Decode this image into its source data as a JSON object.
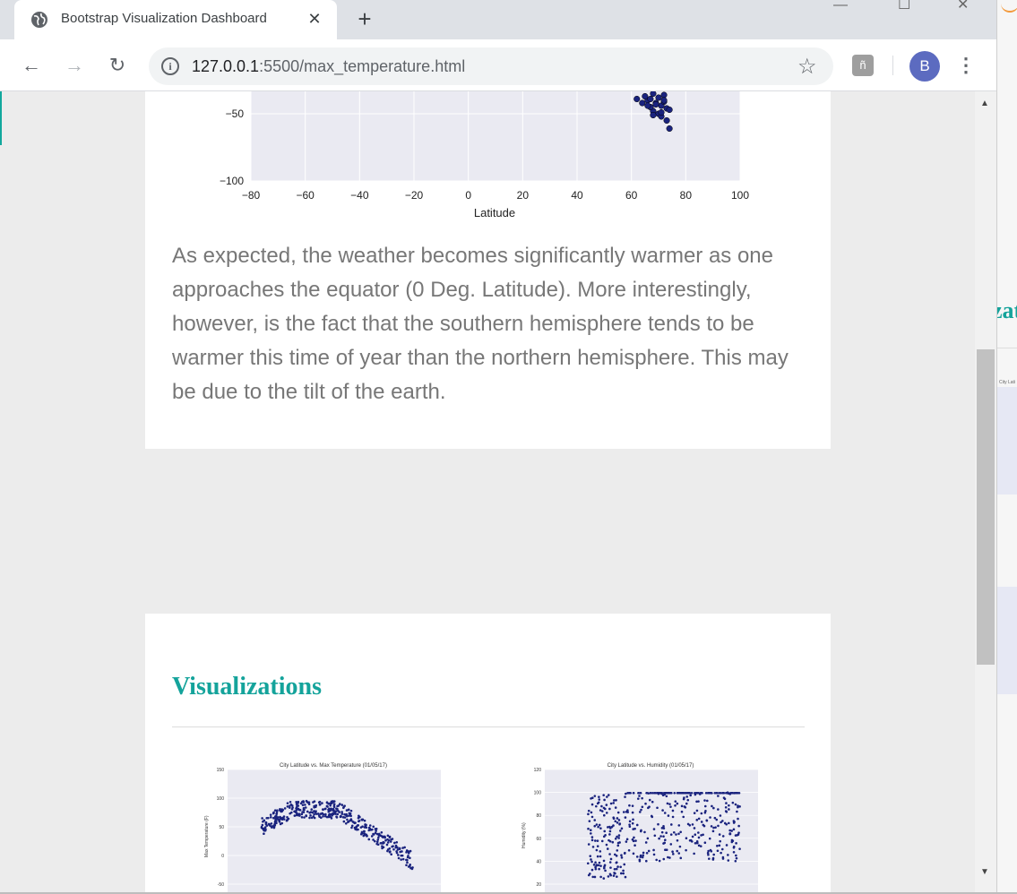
{
  "browser": {
    "tab_title": "Bootstrap Visualization Dashboard",
    "url_host": "127.0.0.1",
    "url_rest": ":5500/max_temperature.html",
    "profile_initial": "B",
    "icons": [
      "globe-icon",
      "close-icon",
      "new-tab-icon",
      "back-icon",
      "forward-icon",
      "reload-icon",
      "info-icon",
      "star-icon",
      "extension-icon",
      "menu-icon"
    ]
  },
  "page": {
    "paragraph": "As expected, the weather becomes significantly warmer as one approaches the equator (0 Deg. Latitude). More interestingly, however, is the fact that the southern hemisphere tends to be warmer this time of year than the northern hemisphere. This may be due to the tilt of the earth.",
    "section_title": "Visualizations",
    "background_window_heading": "zat",
    "background_caption": "City Lati"
  },
  "colors": {
    "accent": "#14a39b",
    "point": "#1a237e",
    "plot_bg": "#eaeaf2"
  },
  "chart_data": [
    {
      "type": "scatter",
      "title": "",
      "xlabel": "Latitude",
      "ylabel": "",
      "xlim": [
        -80,
        100
      ],
      "ylim": [
        -100,
        -25
      ],
      "x_ticks": [
        -80,
        -60,
        -40,
        -20,
        0,
        20,
        40,
        60,
        80,
        100
      ],
      "y_ticks": [
        -50,
        -100
      ],
      "grid": true,
      "x": [
        68,
        70,
        66,
        72,
        69,
        71,
        67,
        73,
        68,
        70,
        65,
        72,
        69,
        74,
        71,
        67,
        70,
        73,
        68,
        71,
        74,
        62,
        64,
        66,
        72,
        70
      ],
      "y": [
        -35,
        -38,
        -40,
        -36,
        -42,
        -44,
        -39,
        -46,
        -48,
        -50,
        -37,
        -41,
        -43,
        -47,
        -52,
        -45,
        -33,
        -55,
        -51,
        -49,
        -61,
        -39,
        -42,
        -44,
        -40,
        -32
      ]
    },
    {
      "type": "scatter",
      "title": "City Latitude vs. Max Temperature (01/05/17)",
      "xlabel": "",
      "ylabel": "Max Temperature (F)",
      "ylim": [
        -50,
        150
      ],
      "y_ticks": [
        150,
        100,
        50,
        0,
        -50
      ],
      "grid": true
    },
    {
      "type": "scatter",
      "title": "City Latitude vs. Humidity (01/05/17)",
      "xlabel": "",
      "ylabel": "Humidity (%)",
      "ylim": [
        20,
        120
      ],
      "y_ticks": [
        120,
        100,
        80,
        60,
        40,
        20
      ],
      "grid": true
    }
  ]
}
